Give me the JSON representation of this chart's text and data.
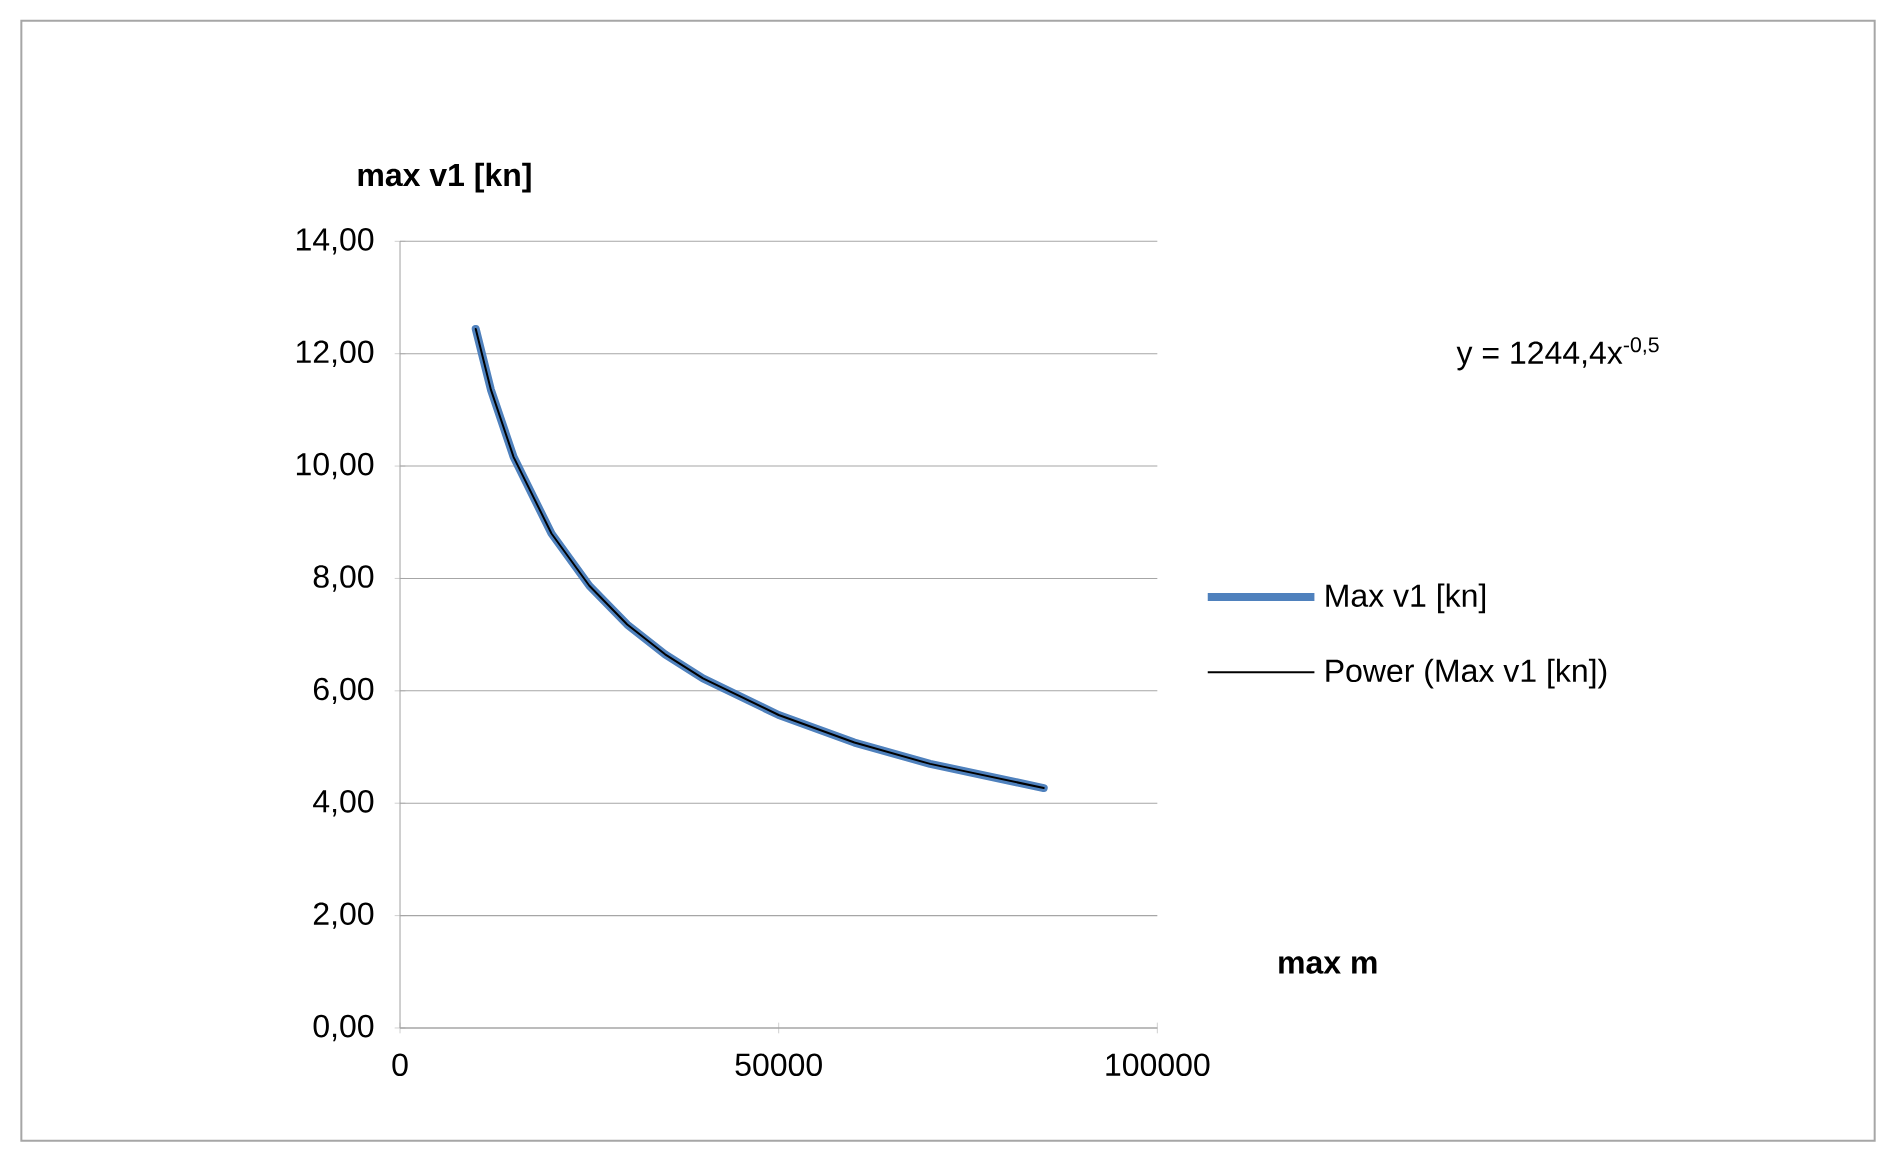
{
  "chart_data": {
    "type": "line",
    "xlabel": "max m",
    "ylabel": "max v1 [kn]",
    "series": [
      {
        "name": "Max v1 [kn]",
        "color": "#4f81bd",
        "x": [
          10000,
          12000,
          15000,
          20000,
          25000,
          30000,
          35000,
          40000,
          50000,
          60000,
          70000,
          85000
        ],
        "values": [
          12.44,
          11.36,
          10.16,
          8.8,
          7.87,
          7.18,
          6.65,
          6.22,
          5.57,
          5.08,
          4.7,
          4.27
        ]
      },
      {
        "name": "Power (Max v1 [kn])",
        "color": "#000000",
        "x": [
          10000,
          12000,
          15000,
          20000,
          25000,
          30000,
          35000,
          40000,
          50000,
          60000,
          70000,
          85000
        ],
        "values": [
          12.44,
          11.36,
          10.16,
          8.8,
          7.87,
          7.18,
          6.65,
          6.22,
          5.57,
          5.08,
          4.7,
          4.27
        ]
      }
    ],
    "annotations": [
      "y = 1244,4x$^{-0,5}$"
    ],
    "xlim": [
      0,
      100000
    ],
    "xticks": [
      0,
      50000,
      100000
    ],
    "ylim": [
      0,
      14
    ],
    "yticks": [
      {
        "value": 0,
        "label": "0,00"
      },
      {
        "value": 2,
        "label": "2,00"
      },
      {
        "value": 4,
        "label": "4,00"
      },
      {
        "value": 6,
        "label": "6,00"
      },
      {
        "value": 8,
        "label": "8,00"
      },
      {
        "value": 10,
        "label": "10,00"
      },
      {
        "value": 12,
        "label": "12,00"
      },
      {
        "value": 14,
        "label": "14,00"
      }
    ],
    "grid": "y",
    "legend": "right",
    "marker": "none",
    "line_style": "solid"
  }
}
